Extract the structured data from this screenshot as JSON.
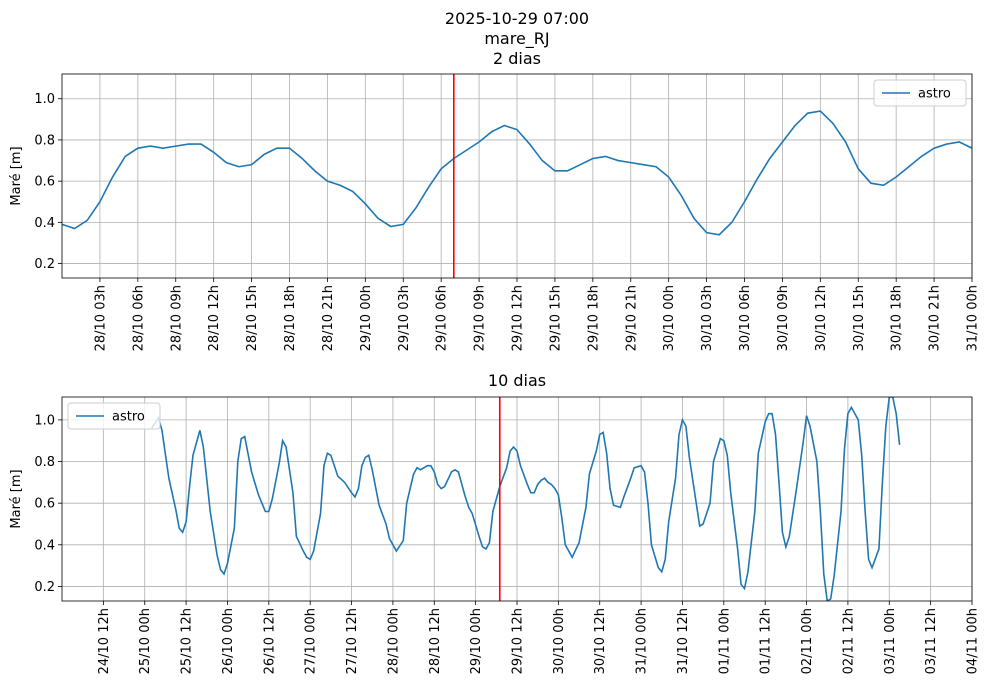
{
  "suptitle": [
    "2025-10-29 07:00",
    "mare_RJ"
  ],
  "chart_data": [
    {
      "type": "line",
      "title": "2 dias",
      "ylabel": "Maré [m]",
      "legend": "upper right",
      "grid": true,
      "xlim": [
        "28/10 00h",
        "31/10 00h"
      ],
      "ylim": [
        0.13,
        1.12
      ],
      "yticks": [
        0.2,
        0.4,
        0.6,
        0.8,
        {
          "value": 1,
          "label": "1.0"
        }
      ],
      "xticks": [
        "28/10 03h",
        "28/10 06h",
        "28/10 09h",
        "28/10 12h",
        "28/10 15h",
        "28/10 18h",
        "28/10 21h",
        "29/10 00h",
        "29/10 03h",
        "29/10 06h",
        "29/10 09h",
        "29/10 12h",
        "29/10 15h",
        "29/10 18h",
        "29/10 21h",
        "30/10 00h",
        "30/10 03h",
        "30/10 06h",
        "30/10 09h",
        "30/10 12h",
        "30/10 15h",
        "30/10 18h",
        "30/10 21h",
        "31/10 00h"
      ],
      "vline": {
        "x": "29/10 07h",
        "color": "red"
      },
      "x": [
        "28/10 00h",
        "28/10 01h",
        "28/10 02h",
        "28/10 03h",
        "28/10 04h",
        "28/10 05h",
        "28/10 06h",
        "28/10 07h",
        "28/10 08h",
        "28/10 09h",
        "28/10 10h",
        "28/10 11h",
        "28/10 12h",
        "28/10 13h",
        "28/10 14h",
        "28/10 15h",
        "28/10 16h",
        "28/10 17h",
        "28/10 18h",
        "28/10 19h",
        "28/10 20h",
        "28/10 21h",
        "28/10 22h",
        "28/10 23h",
        "29/10 00h",
        "29/10 01h",
        "29/10 02h",
        "29/10 03h",
        "29/10 04h",
        "29/10 05h",
        "29/10 06h",
        "29/10 07h",
        "29/10 08h",
        "29/10 09h",
        "29/10 10h",
        "29/10 11h",
        "29/10 12h",
        "29/10 13h",
        "29/10 14h",
        "29/10 15h",
        "29/10 16h",
        "29/10 17h",
        "29/10 18h",
        "29/10 19h",
        "29/10 20h",
        "29/10 21h",
        "29/10 22h",
        "29/10 23h",
        "30/10 00h",
        "30/10 01h",
        "30/10 02h",
        "30/10 03h",
        "30/10 04h",
        "30/10 05h",
        "30/10 06h",
        "30/10 07h",
        "30/10 08h",
        "30/10 09h",
        "30/10 10h",
        "30/10 11h",
        "30/10 12h",
        "30/10 13h",
        "30/10 14h",
        "30/10 15h",
        "30/10 16h",
        "30/10 17h",
        "30/10 18h",
        "30/10 19h",
        "30/10 20h",
        "30/10 21h",
        "30/10 22h",
        "30/10 23h",
        "31/10 00h"
      ],
      "series": [
        {
          "name": "astro",
          "color": "#1f77b4",
          "values": [
            0.39,
            0.37,
            0.41,
            0.5,
            0.62,
            0.72,
            0.76,
            0.77,
            0.76,
            0.77,
            0.78,
            0.78,
            0.74,
            0.69,
            0.67,
            0.68,
            0.73,
            0.76,
            0.76,
            0.71,
            0.65,
            0.6,
            0.58,
            0.55,
            0.49,
            0.42,
            0.38,
            0.39,
            0.47,
            0.57,
            0.66,
            0.71,
            0.75,
            0.79,
            0.84,
            0.87,
            0.85,
            0.78,
            0.7,
            0.65,
            0.65,
            0.68,
            0.71,
            0.72,
            0.7,
            0.69,
            0.68,
            0.67,
            0.62,
            0.53,
            0.42,
            0.35,
            0.34,
            0.4,
            0.5,
            0.61,
            0.71,
            0.79,
            0.87,
            0.93,
            0.94,
            0.88,
            0.79,
            0.66,
            0.59,
            0.58,
            0.62,
            0.67,
            0.72,
            0.76,
            0.78,
            0.79,
            0.76
          ]
        }
      ]
    },
    {
      "type": "line",
      "title": "10 dias",
      "ylabel": "Maré [m]",
      "legend": "upper left",
      "grid": true,
      "xlim": [
        "24/10 00h",
        "04/11 00h"
      ],
      "ylim": [
        0.13,
        1.11
      ],
      "yticks": [
        0.2,
        0.4,
        0.6,
        0.8,
        {
          "value": 1,
          "label": "1.0"
        }
      ],
      "xticks": [
        "24/10 12h",
        "25/10 00h",
        "25/10 12h",
        "26/10 00h",
        "26/10 12h",
        "27/10 00h",
        "27/10 12h",
        "28/10 00h",
        "28/10 12h",
        "29/10 00h",
        "29/10 12h",
        "30/10 00h",
        "30/10 12h",
        "31/10 00h",
        "31/10 12h",
        "01/11 00h",
        "01/11 12h",
        "02/11 00h",
        "02/11 12h",
        "03/11 00h",
        "03/11 12h",
        "04/11 00h"
      ],
      "vline": {
        "x": "29/10 07h",
        "color": "red"
      },
      "x": [
        "25/10 02h",
        "25/10 04h",
        "25/10 05h",
        "25/10 07h",
        "25/10 09h",
        "25/10 10h",
        "25/10 11h",
        "25/10 12h",
        "25/10 13h",
        "25/10 14h",
        "25/10 16h",
        "25/10 17h",
        "25/10 19h",
        "25/10 21h",
        "25/10 22h",
        "25/10 23h",
        "26/10 00h",
        "26/10 02h",
        "26/10 03h",
        "26/10 04h",
        "26/10 05h",
        "26/10 07h",
        "26/10 09h",
        "26/10 11h",
        "26/10 12h",
        "26/10 13h",
        "26/10 15h",
        "26/10 16h",
        "26/10 17h",
        "26/10 19h",
        "26/10 20h",
        "26/10 22h",
        "26/10 23h",
        "27/10 00h",
        "27/10 01h",
        "27/10 03h",
        "27/10 04h",
        "27/10 05h",
        "27/10 06h",
        "27/10 08h",
        "27/10 10h",
        "27/10 12h",
        "27/10 13h",
        "27/10 14h",
        "27/10 15h",
        "27/10 16h",
        "27/10 17h",
        "27/10 18h",
        "27/10 20h",
        "27/10 22h",
        "27/10 23h",
        "28/10 01h",
        "28/10 03h",
        "28/10 04h",
        "28/10 06h",
        "28/10 07h",
        "28/10 08h",
        "28/10 10h",
        "28/10 11h",
        "28/10 12h",
        "28/10 13h",
        "28/10 14h",
        "28/10 15h",
        "28/10 17h",
        "28/10 18h",
        "28/10 19h",
        "28/10 21h",
        "28/10 22h",
        "28/10 23h",
        "29/10 01h",
        "29/10 02h",
        "29/10 03h",
        "29/10 04h",
        "29/10 05h",
        "29/10 07h",
        "29/10 09h",
        "29/10 10h",
        "29/10 11h",
        "29/10 12h",
        "29/10 13h",
        "29/10 15h",
        "29/10 16h",
        "29/10 17h",
        "29/10 18h",
        "29/10 19h",
        "29/10 20h",
        "29/10 21h",
        "29/10 22h",
        "29/10 23h",
        "30/10 00h",
        "30/10 01h",
        "30/10 02h",
        "30/10 04h",
        "30/10 06h",
        "30/10 08h",
        "30/10 09h",
        "30/10 11h",
        "30/10 12h",
        "30/10 13h",
        "30/10 14h",
        "30/10 15h",
        "30/10 16h",
        "30/10 18h",
        "30/10 19h",
        "30/10 21h",
        "30/10 22h",
        "31/10 00h",
        "31/10 01h",
        "31/10 02h",
        "31/10 03h",
        "31/10 05h",
        "31/10 06h",
        "31/10 07h",
        "31/10 08h",
        "31/10 10h",
        "31/10 11h",
        "31/10 12h",
        "31/10 13h",
        "31/10 14h",
        "31/10 16h",
        "31/10 17h",
        "31/10 18h",
        "31/10 20h",
        "31/10 21h",
        "31/10 23h",
        "01/11 00h",
        "01/11 01h",
        "01/11 02h",
        "01/11 04h",
        "01/11 05h",
        "01/11 06h",
        "01/11 07h",
        "01/11 09h",
        "01/11 10h",
        "01/11 12h",
        "01/11 13h",
        "01/11 14h",
        "01/11 15h",
        "01/11 16h",
        "01/11 17h",
        "01/11 18h",
        "01/11 19h",
        "01/11 21h",
        "01/11 23h",
        "02/11 00h",
        "02/11 01h",
        "02/11 03h",
        "02/11 04h",
        "02/11 05h",
        "02/11 06h",
        "02/11 07h",
        "02/11 08h",
        "02/11 10h",
        "02/11 11h",
        "02/11 12h",
        "02/11 13h",
        "02/11 15h",
        "02/11 16h",
        "02/11 17h",
        "02/11 18h",
        "02/11 19h",
        "02/11 21h",
        "02/11 22h",
        "02/11 23h",
        "03/11 00h",
        "03/11 01h",
        "03/11 02h",
        "03/11 03h"
      ],
      "series": [
        {
          "name": "astro",
          "color": "#1f77b4",
          "values": [
            0.96,
            1.01,
            0.95,
            0.72,
            0.57,
            0.48,
            0.46,
            0.51,
            0.68,
            0.83,
            0.95,
            0.87,
            0.56,
            0.35,
            0.28,
            0.26,
            0.31,
            0.48,
            0.8,
            0.91,
            0.92,
            0.75,
            0.64,
            0.56,
            0.56,
            0.62,
            0.79,
            0.9,
            0.87,
            0.65,
            0.44,
            0.37,
            0.34,
            0.33,
            0.37,
            0.55,
            0.78,
            0.84,
            0.83,
            0.73,
            0.7,
            0.65,
            0.63,
            0.67,
            0.78,
            0.82,
            0.83,
            0.76,
            0.59,
            0.5,
            0.43,
            0.37,
            0.42,
            0.6,
            0.74,
            0.77,
            0.76,
            0.78,
            0.78,
            0.75,
            0.69,
            0.67,
            0.68,
            0.75,
            0.76,
            0.75,
            0.63,
            0.58,
            0.55,
            0.44,
            0.39,
            0.38,
            0.41,
            0.56,
            0.68,
            0.77,
            0.85,
            0.87,
            0.85,
            0.78,
            0.69,
            0.65,
            0.65,
            0.69,
            0.71,
            0.72,
            0.7,
            0.69,
            0.67,
            0.64,
            0.53,
            0.4,
            0.34,
            0.41,
            0.58,
            0.74,
            0.85,
            0.93,
            0.94,
            0.84,
            0.67,
            0.59,
            0.58,
            0.63,
            0.72,
            0.77,
            0.78,
            0.75,
            0.6,
            0.4,
            0.29,
            0.27,
            0.33,
            0.51,
            0.72,
            0.93,
            1.0,
            0.97,
            0.82,
            0.6,
            0.49,
            0.5,
            0.6,
            0.8,
            0.91,
            0.9,
            0.83,
            0.65,
            0.38,
            0.21,
            0.19,
            0.27,
            0.56,
            0.84,
            0.99,
            1.03,
            1.03,
            0.93,
            0.7,
            0.46,
            0.39,
            0.44,
            0.66,
            0.89,
            1.02,
            0.97,
            0.8,
            0.56,
            0.26,
            0.13,
            0.14,
            0.25,
            0.56,
            0.86,
            1.03,
            1.06,
            1.0,
            0.83,
            0.56,
            0.33,
            0.29,
            0.38,
            0.7,
            0.97,
            1.11,
            1.11,
            1.03,
            0.88
          ]
        }
      ]
    }
  ]
}
